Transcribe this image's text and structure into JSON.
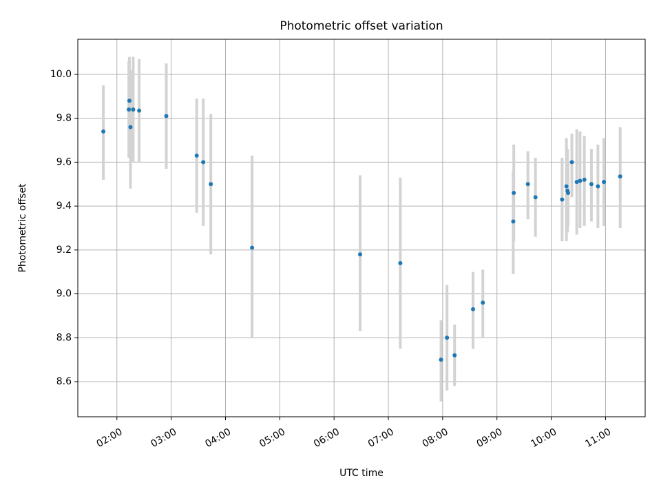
{
  "chart_data": {
    "type": "scatter",
    "title": "Photometric offset variation",
    "xlabel": "UTC time",
    "ylabel": "Photometric offset",
    "x_tick_labels": [
      "02:00",
      "03:00",
      "04:00",
      "05:00",
      "06:00",
      "07:00",
      "08:00",
      "09:00",
      "10:00",
      "11:00"
    ],
    "x_tick_hours": [
      2,
      3,
      4,
      5,
      6,
      7,
      8,
      9,
      10,
      11
    ],
    "y_ticks": [
      8.6,
      8.8,
      9.0,
      9.2,
      9.4,
      9.6,
      9.8,
      10.0
    ],
    "y_tick_labels": [
      "8.6",
      "8.8",
      "9.0",
      "9.2",
      "9.4",
      "9.6",
      "9.8",
      "10.0"
    ],
    "xlim_hours": [
      1.28,
      11.73
    ],
    "ylim": [
      8.44,
      10.16
    ],
    "grid": true,
    "point_color": "#1f77b4",
    "errorbar_color": "#d3d3d3",
    "points": [
      {
        "t": 1.75,
        "y": 9.74,
        "lo": 9.52,
        "hi": 9.95
      },
      {
        "t": 2.23,
        "y": 9.88,
        "lo": 9.62,
        "hi": 10.08
      },
      {
        "t": 2.22,
        "y": 9.84,
        "lo": 9.62,
        "hi": 10.06
      },
      {
        "t": 2.25,
        "y": 9.76,
        "lo": 9.48,
        "hi": 10.02
      },
      {
        "t": 2.3,
        "y": 9.84,
        "lo": 9.6,
        "hi": 10.08
      },
      {
        "t": 2.41,
        "y": 9.835,
        "lo": 9.6,
        "hi": 10.07
      },
      {
        "t": 2.91,
        "y": 9.81,
        "lo": 9.57,
        "hi": 10.05
      },
      {
        "t": 3.47,
        "y": 9.63,
        "lo": 9.37,
        "hi": 9.89
      },
      {
        "t": 3.59,
        "y": 9.6,
        "lo": 9.31,
        "hi": 9.89
      },
      {
        "t": 3.73,
        "y": 9.5,
        "lo": 9.18,
        "hi": 9.82
      },
      {
        "t": 4.49,
        "y": 9.21,
        "lo": 8.8,
        "hi": 9.63
      },
      {
        "t": 6.48,
        "y": 9.18,
        "lo": 8.83,
        "hi": 9.54
      },
      {
        "t": 7.22,
        "y": 9.14,
        "lo": 8.75,
        "hi": 9.53
      },
      {
        "t": 7.97,
        "y": 8.7,
        "lo": 8.51,
        "hi": 8.88
      },
      {
        "t": 8.08,
        "y": 8.8,
        "lo": 8.56,
        "hi": 9.04
      },
      {
        "t": 8.22,
        "y": 8.72,
        "lo": 8.58,
        "hi": 8.86
      },
      {
        "t": 8.56,
        "y": 8.93,
        "lo": 8.75,
        "hi": 9.1
      },
      {
        "t": 8.74,
        "y": 8.96,
        "lo": 8.8,
        "hi": 9.11
      },
      {
        "t": 9.3,
        "y": 9.33,
        "lo": 9.09,
        "hi": 9.56
      },
      {
        "t": 9.31,
        "y": 9.46,
        "lo": 9.24,
        "hi": 9.68
      },
      {
        "t": 9.57,
        "y": 9.5,
        "lo": 9.34,
        "hi": 9.65
      },
      {
        "t": 9.71,
        "y": 9.44,
        "lo": 9.26,
        "hi": 9.62
      },
      {
        "t": 10.2,
        "y": 9.43,
        "lo": 9.24,
        "hi": 9.62
      },
      {
        "t": 10.28,
        "y": 9.49,
        "lo": 9.24,
        "hi": 9.71
      },
      {
        "t": 10.3,
        "y": 9.47,
        "lo": 9.28,
        "hi": 9.66
      },
      {
        "t": 10.31,
        "y": 9.46,
        "lo": 9.31,
        "hi": 9.6
      },
      {
        "t": 10.38,
        "y": 9.6,
        "lo": 9.44,
        "hi": 9.73
      },
      {
        "t": 10.47,
        "y": 9.51,
        "lo": 9.27,
        "hi": 9.75
      },
      {
        "t": 10.53,
        "y": 9.515,
        "lo": 9.3,
        "hi": 9.74
      },
      {
        "t": 10.61,
        "y": 9.52,
        "lo": 9.31,
        "hi": 9.72
      },
      {
        "t": 10.74,
        "y": 9.5,
        "lo": 9.33,
        "hi": 9.66
      },
      {
        "t": 10.86,
        "y": 9.49,
        "lo": 9.3,
        "hi": 9.68
      },
      {
        "t": 10.97,
        "y": 9.51,
        "lo": 9.31,
        "hi": 9.71
      },
      {
        "t": 11.27,
        "y": 9.535,
        "lo": 9.3,
        "hi": 9.76
      }
    ]
  }
}
